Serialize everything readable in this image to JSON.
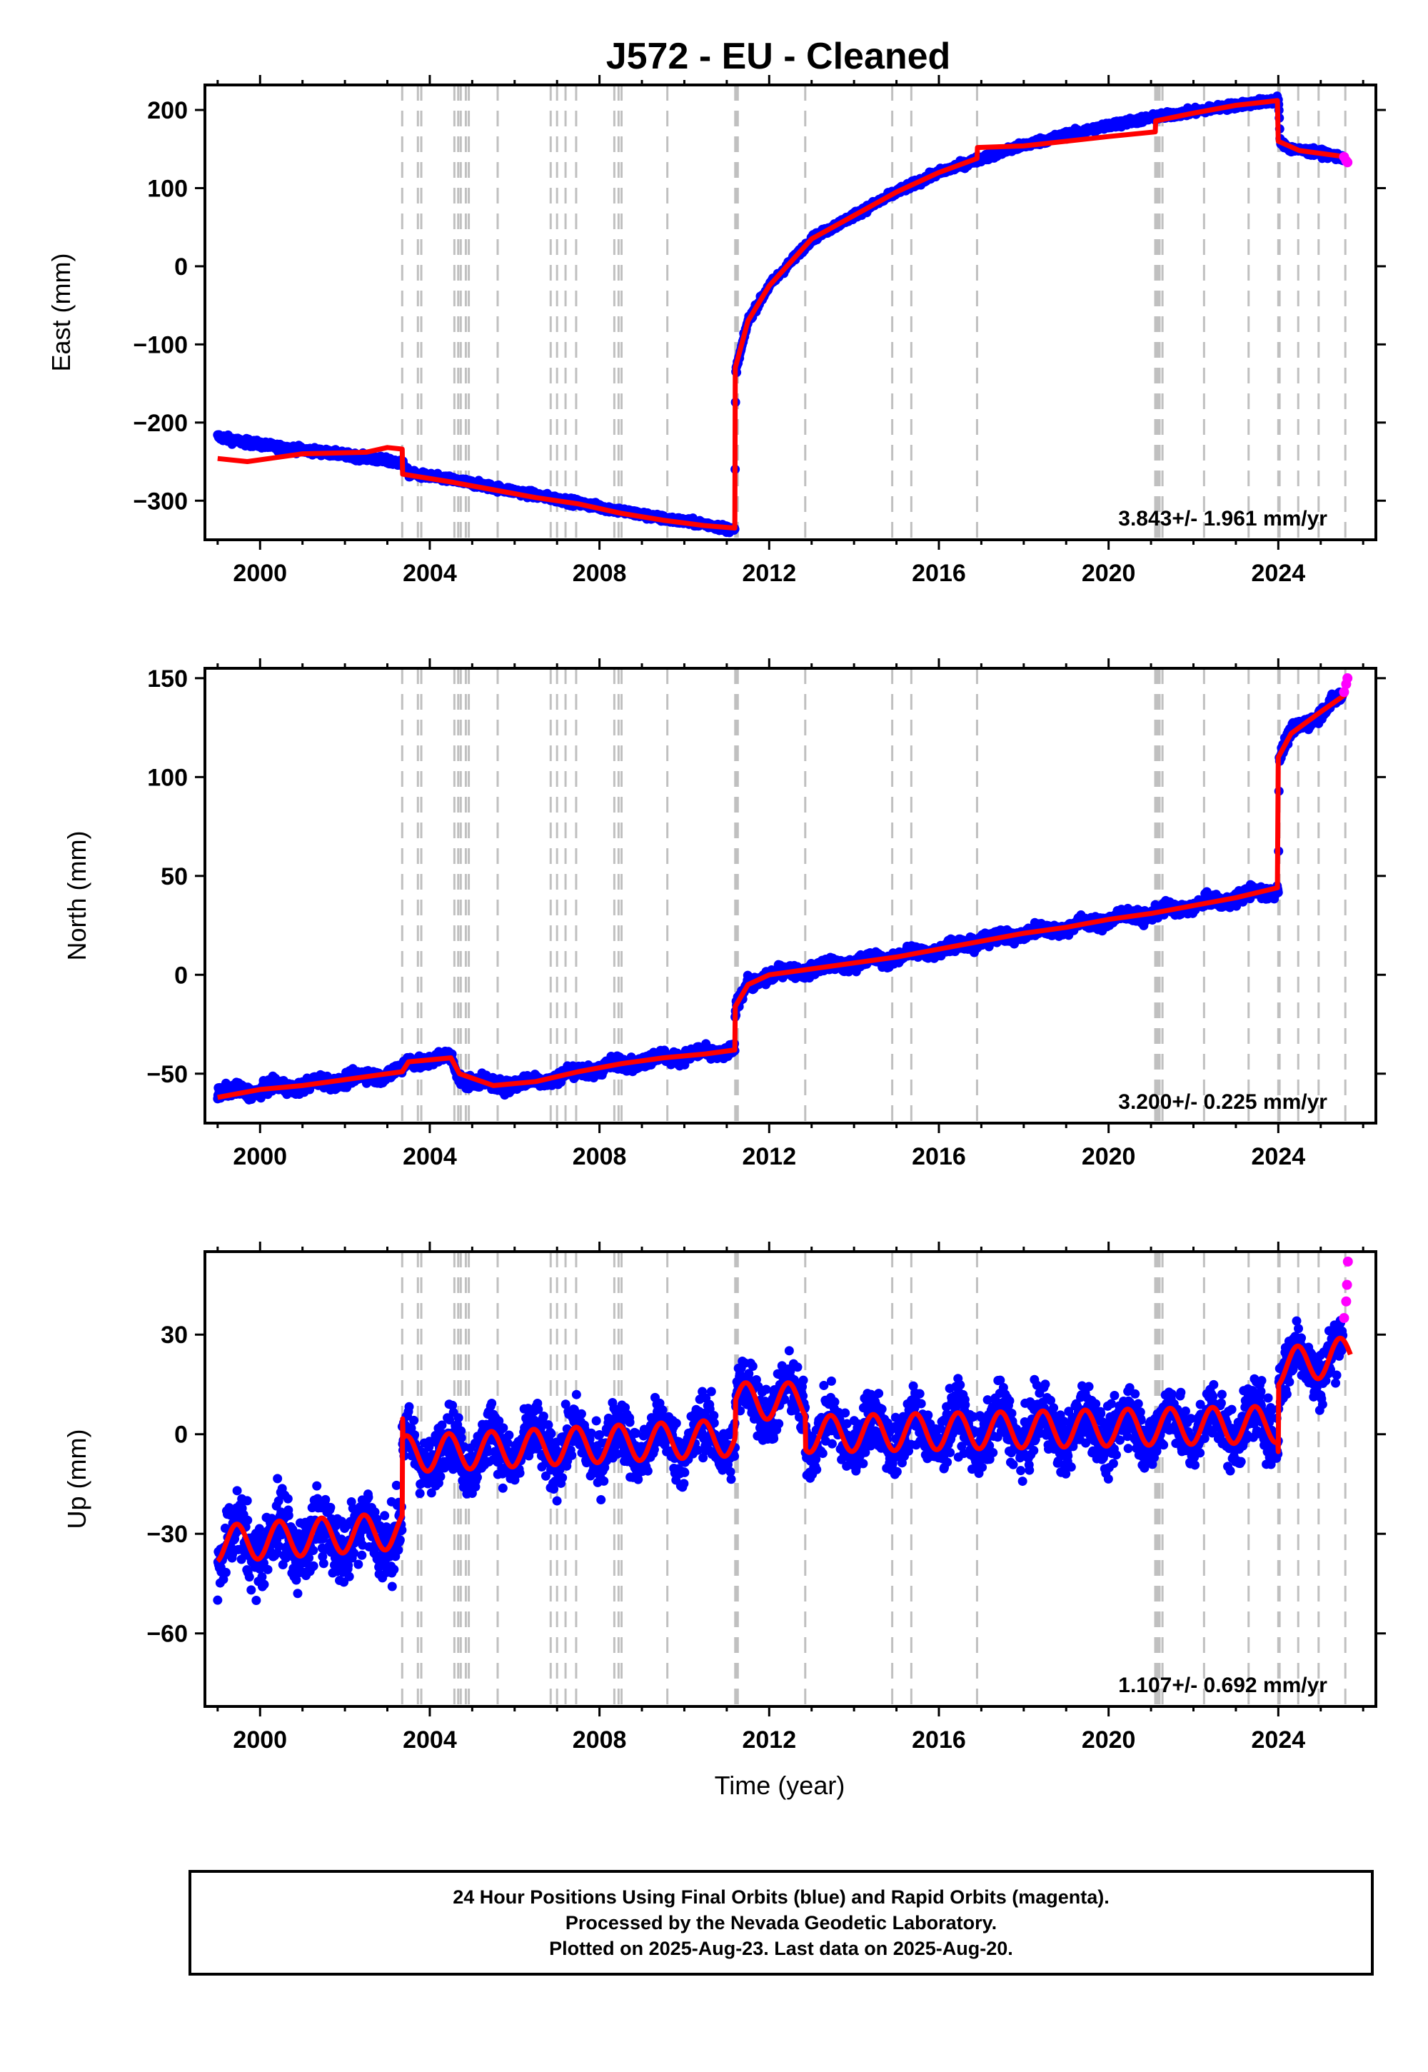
{
  "title": "J572  - EU - Cleaned",
  "xlabel": "Time (year)",
  "colors": {
    "final": "#0000ff",
    "rapid": "#ff00ff",
    "model": "#ff0000",
    "step_lines": "#c0c0c0"
  },
  "footer": {
    "line1": "24 Hour Positions Using Final Orbits (blue) and Rapid Orbits (magenta).",
    "line2": "Processed by the Nevada Geodetic Laboratory.",
    "line3": "Plotted on 2025-Aug-23. Last data on 2025-Aug-20."
  },
  "chart_data": [
    {
      "type": "scatter",
      "component": "East",
      "ylabel": "East (mm)",
      "xlim": [
        1998.7,
        2026.3
      ],
      "ylim": [
        -350,
        232
      ],
      "xticks": [
        2000,
        2004,
        2008,
        2012,
        2016,
        2020,
        2024
      ],
      "yticks": [
        -300,
        -200,
        -100,
        0,
        100,
        200
      ],
      "rate_label": "3.843+/- 1.961 mm/yr",
      "scatter_anchor": [
        [
          1999.0,
          -218
        ],
        [
          1999.5,
          -224
        ],
        [
          2000.5,
          -232
        ],
        [
          2001.5,
          -238
        ],
        [
          2002.5,
          -245
        ],
        [
          2003.35,
          -252
        ],
        [
          2003.5,
          -265
        ],
        [
          2004.5,
          -273
        ],
        [
          2005.5,
          -283
        ],
        [
          2006.5,
          -293
        ],
        [
          2007.5,
          -303
        ],
        [
          2008.5,
          -313
        ],
        [
          2009.5,
          -323
        ],
        [
          2010.5,
          -330
        ],
        [
          2011.19,
          -338
        ],
        [
          2011.21,
          -135
        ],
        [
          2011.5,
          -70
        ],
        [
          2012.0,
          -25
        ],
        [
          2012.5,
          5
        ],
        [
          2013.0,
          35
        ],
        [
          2014.0,
          65
        ],
        [
          2015.0,
          95
        ],
        [
          2016.0,
          120
        ],
        [
          2017.0,
          138
        ],
        [
          2018.0,
          155
        ],
        [
          2019.0,
          168
        ],
        [
          2020.0,
          180
        ],
        [
          2021.0,
          190
        ],
        [
          2022.0,
          198
        ],
        [
          2023.0,
          206
        ],
        [
          2023.9,
          212
        ],
        [
          2024.0,
          214
        ],
        [
          2024.05,
          158
        ],
        [
          2024.3,
          150
        ],
        [
          2025.0,
          145
        ],
        [
          2025.6,
          138
        ]
      ],
      "model_anchor": [
        [
          1999.0,
          -246
        ],
        [
          1999.7,
          -250
        ],
        [
          2001.0,
          -240
        ],
        [
          2002.5,
          -238
        ],
        [
          2003.0,
          -232
        ],
        [
          2003.35,
          -234
        ],
        [
          2003.36,
          -266
        ],
        [
          2004.5,
          -276
        ],
        [
          2005.5,
          -286
        ],
        [
          2006.5,
          -296
        ],
        [
          2007.5,
          -304
        ],
        [
          2008.5,
          -316
        ],
        [
          2009.5,
          -325
        ],
        [
          2010.5,
          -332
        ],
        [
          2011.19,
          -335
        ],
        [
          2011.2,
          -130
        ],
        [
          2011.5,
          -70
        ],
        [
          2012.0,
          -25
        ],
        [
          2013.0,
          35
        ],
        [
          2014.0,
          65
        ],
        [
          2015.0,
          95
        ],
        [
          2016.0,
          120
        ],
        [
          2016.9,
          138
        ],
        [
          2016.91,
          152
        ],
        [
          2018.0,
          154
        ],
        [
          2019.0,
          160
        ],
        [
          2020.0,
          166
        ],
        [
          2021.1,
          172
        ],
        [
          2021.11,
          186
        ],
        [
          2022.0,
          196
        ],
        [
          2023.0,
          206
        ],
        [
          2023.98,
          212
        ],
        [
          2024.0,
          160
        ],
        [
          2024.5,
          148
        ],
        [
          2025.6,
          140
        ]
      ],
      "rapid_points": [
        [
          2025.55,
          140
        ],
        [
          2025.6,
          135
        ],
        [
          2025.63,
          133
        ]
      ]
    },
    {
      "type": "scatter",
      "component": "North",
      "ylabel": "North (mm)",
      "xlim": [
        1998.7,
        2026.3
      ],
      "ylim": [
        -75,
        155
      ],
      "xticks": [
        2000,
        2004,
        2008,
        2012,
        2016,
        2020,
        2024
      ],
      "yticks": [
        -50,
        0,
        50,
        100,
        150
      ],
      "rate_label": "3.200+/- 0.225 mm/yr",
      "scatter_anchor": [
        [
          1999.0,
          -60
        ],
        [
          2000.0,
          -58
        ],
        [
          2001.0,
          -56
        ],
        [
          2002.0,
          -53
        ],
        [
          2003.0,
          -50
        ],
        [
          2003.35,
          -48
        ],
        [
          2003.5,
          -44
        ],
        [
          2004.5,
          -42
        ],
        [
          2004.7,
          -52
        ],
        [
          2005.5,
          -56
        ],
        [
          2006.5,
          -54
        ],
        [
          2007.5,
          -49
        ],
        [
          2008.5,
          -45
        ],
        [
          2009.5,
          -42
        ],
        [
          2010.5,
          -40
        ],
        [
          2011.19,
          -38
        ],
        [
          2011.2,
          -18
        ],
        [
          2011.5,
          -5
        ],
        [
          2012.0,
          0
        ],
        [
          2013.0,
          3
        ],
        [
          2014.0,
          6
        ],
        [
          2015.0,
          9
        ],
        [
          2016.0,
          13
        ],
        [
          2017.0,
          17
        ],
        [
          2018.0,
          21
        ],
        [
          2019.0,
          24
        ],
        [
          2020.0,
          28
        ],
        [
          2021.0,
          31
        ],
        [
          2022.0,
          35
        ],
        [
          2023.0,
          39
        ],
        [
          2023.9,
          43
        ],
        [
          2024.0,
          44
        ],
        [
          2024.02,
          110
        ],
        [
          2024.3,
          122
        ],
        [
          2025.0,
          133
        ],
        [
          2025.5,
          140
        ]
      ],
      "model_anchor": [
        [
          1999.0,
          -62
        ],
        [
          2000.0,
          -58
        ],
        [
          2001.0,
          -56
        ],
        [
          2002.0,
          -53
        ],
        [
          2003.0,
          -50
        ],
        [
          2003.35,
          -49
        ],
        [
          2003.5,
          -44
        ],
        [
          2004.5,
          -42
        ],
        [
          2004.7,
          -50
        ],
        [
          2005.5,
          -56
        ],
        [
          2006.5,
          -54
        ],
        [
          2007.5,
          -49
        ],
        [
          2008.5,
          -45
        ],
        [
          2009.5,
          -42
        ],
        [
          2010.5,
          -40
        ],
        [
          2011.19,
          -38
        ],
        [
          2011.2,
          -16
        ],
        [
          2011.5,
          -5
        ],
        [
          2012.0,
          0
        ],
        [
          2013.0,
          3
        ],
        [
          2014.0,
          6
        ],
        [
          2015.0,
          9
        ],
        [
          2016.0,
          13
        ],
        [
          2017.0,
          17
        ],
        [
          2018.0,
          21
        ],
        [
          2019.0,
          24
        ],
        [
          2020.0,
          28
        ],
        [
          2021.0,
          31
        ],
        [
          2022.0,
          35
        ],
        [
          2023.0,
          39
        ],
        [
          2023.98,
          44
        ],
        [
          2024.0,
          110
        ],
        [
          2024.3,
          122
        ],
        [
          2025.0,
          133
        ],
        [
          2025.6,
          142
        ]
      ],
      "rapid_points": [
        [
          2025.55,
          143
        ],
        [
          2025.6,
          147
        ],
        [
          2025.63,
          150
        ]
      ]
    },
    {
      "type": "scatter",
      "component": "Up",
      "ylabel": "Up (mm)",
      "xlim": [
        1998.7,
        2026.3
      ],
      "ylim": [
        -82,
        55
      ],
      "xticks": [
        2000,
        2004,
        2008,
        2012,
        2016,
        2020,
        2024
      ],
      "yticks": [
        -60,
        -30,
        0,
        30
      ],
      "rate_label": "1.107+/- 0.692 mm/yr",
      "trend_segments": [
        {
          "x0": 1999.0,
          "x1": 2003.35,
          "y0": -33,
          "y1": -29
        },
        {
          "x0": 2003.36,
          "x1": 2011.19,
          "y0": -6,
          "y1": -1
        },
        {
          "x0": 2011.2,
          "x1": 2012.85,
          "y0": 10,
          "y1": 10
        },
        {
          "x0": 2012.86,
          "x1": 2023.99,
          "y0": 0,
          "y1": 3
        },
        {
          "x0": 2024.0,
          "x1": 2025.7,
          "y0": 20,
          "y1": 24
        }
      ],
      "rapid_points": [
        [
          2025.55,
          35
        ],
        [
          2025.6,
          40
        ],
        [
          2025.62,
          45
        ],
        [
          2025.64,
          52
        ]
      ]
    }
  ],
  "step_epochs": [
    2003.35,
    2003.72,
    2003.8,
    2004.58,
    2004.67,
    2004.73,
    2004.85,
    2004.92,
    2005.6,
    2006.85,
    2007.0,
    2007.2,
    2007.45,
    2008.35,
    2008.45,
    2008.52,
    2009.6,
    2011.2,
    2011.22,
    2011.24,
    2011.26,
    2012.85,
    2014.9,
    2015.35,
    2016.9,
    2021.1,
    2021.15,
    2021.2,
    2021.27,
    2022.25,
    2023.3,
    2024.0,
    2024.03,
    2024.47,
    2024.95,
    2025.58
  ]
}
